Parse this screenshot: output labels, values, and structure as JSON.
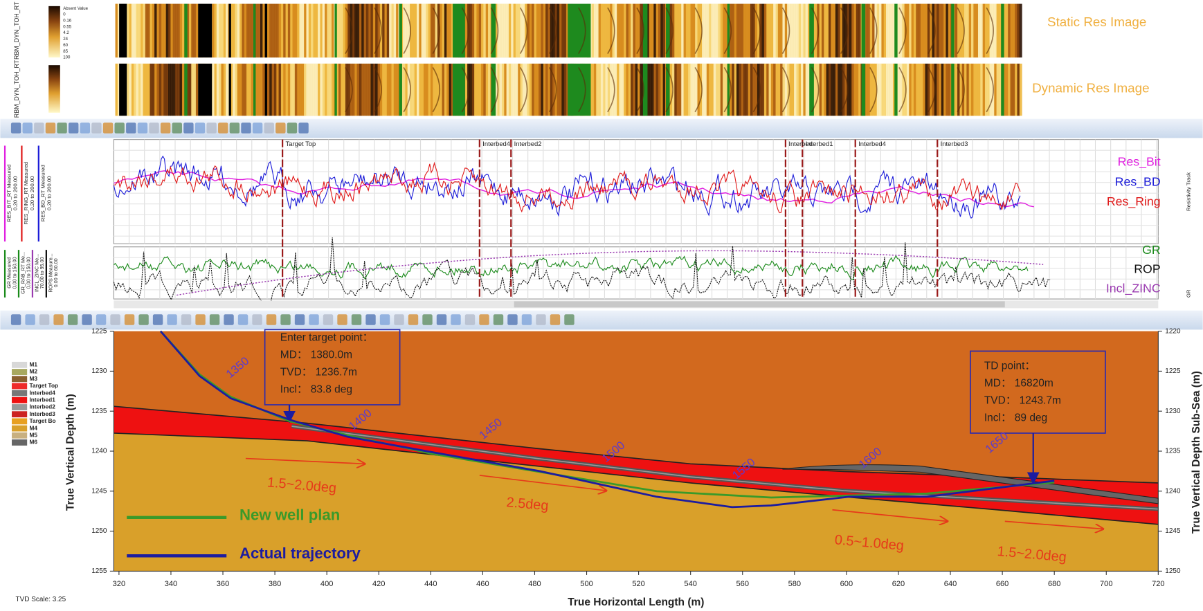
{
  "image_tracks": {
    "static_title": "Static Res Image",
    "dynamic_title": "Dynamic Res Image",
    "static_curve": "RBM_DYN_TOH_RT",
    "dynamic_curve": "RBM_DYN_TOH_RT",
    "color_scale": [
      "Absent Value",
      "0",
      "0.16",
      "0.55",
      "4.2",
      "24",
      "60",
      "85",
      "100"
    ]
  },
  "resistivity_track": {
    "title": "Resistivity Track",
    "curves": [
      {
        "name": "RES_BIT_RT Measured",
        "range": "0.20 to 200.00"
      },
      {
        "name": "RES_RING_RT Measured",
        "range": "0.20 to 200.00"
      },
      {
        "name": "RES_BD_RT Measured",
        "range": "0.20 to 200.00"
      }
    ],
    "markers": [
      "Target Top",
      "Interbed4",
      "Interbed2",
      "Interbed",
      "Interbed1",
      "Interbed4",
      "Interbed3"
    ],
    "legend": [
      "Res_Bit",
      "Res_BD",
      "Res_Ring"
    ]
  },
  "gr_track": {
    "title": "GR",
    "curves": [
      {
        "name": "GR Measured",
        "range": "0.00 to 150.00"
      },
      {
        "name": "GR_RAB_RT Me...",
        "range": "0.00 to 150.00"
      },
      {
        "name": "INCL_ZINC Me...",
        "range": "70.00 to 95.00"
      },
      {
        "name": "ROPS Measure...",
        "range": "0.00 to 60.00"
      }
    ],
    "legend": [
      "GR",
      "ROP",
      "Incl_ZINC"
    ]
  },
  "chart_data": {
    "type": "line",
    "xlabel": "True Horizontal Length (m)",
    "ylabel": "True Vertical Depth (m)",
    "y2label": "True Vertical Depth Sub-Sea (m)",
    "xlim": [
      318,
      720
    ],
    "ylim": [
      1225,
      1255
    ],
    "y2lim": [
      1220,
      1250
    ],
    "xticks": [
      320,
      340,
      360,
      380,
      400,
      420,
      440,
      460,
      480,
      500,
      520,
      540,
      560,
      580,
      600,
      620,
      640,
      660,
      680,
      700,
      720
    ],
    "yticks": [
      1225,
      1230,
      1235,
      1240,
      1245,
      1250,
      1255
    ],
    "y2ticks": [
      1220,
      1225,
      1230,
      1235,
      1240,
      1245,
      1250
    ],
    "series": [
      {
        "name": "New well plan",
        "color": "#3a9a2a",
        "x": [
          336,
          351,
          363,
          386,
          408,
          440,
          482,
          527,
          571,
          631,
          680
        ],
        "values": [
          1225,
          1230.4,
          1233.2,
          1236.3,
          1238,
          1240.3,
          1242.6,
          1245,
          1245.8,
          1245.3,
          1243.9
        ]
      },
      {
        "name": "Actual trajectory",
        "color": "#1c1ca0",
        "x": [
          336,
          351,
          363,
          386,
          408,
          440,
          482,
          527,
          556,
          571,
          601,
          631,
          680
        ],
        "values": [
          1225,
          1230.6,
          1233.4,
          1236.1,
          1238.2,
          1240.1,
          1242.5,
          1245.7,
          1247,
          1246.8,
          1245.7,
          1245.7,
          1243.7
        ]
      }
    ],
    "md_labels": [
      "1350",
      "1400",
      "1450",
      "1500",
      "1550",
      "1600",
      "1650"
    ],
    "annotations": [
      [
        "Enter target point：",
        "MD： 1380.0m",
        "TVD： 1236.7m",
        "Incl： 83.8 deg"
      ],
      [
        "TD point：",
        "MD： 16820m",
        "TVD： 1243.7m",
        "Incl： 89 deg"
      ]
    ],
    "dip_labels": [
      "1.5~2.0deg",
      "2.5deg",
      "0.5~1.0deg",
      "1.5~2.0deg"
    ],
    "formations": [
      "M1",
      "M2",
      "M3",
      "Target Top",
      "Interbed4",
      "Interbed1",
      "Interbed2",
      "Interbed3",
      "Target Bo",
      "M4",
      "M5",
      "M6"
    ],
    "tvd_scale": "TVD Scale: 3.25"
  }
}
